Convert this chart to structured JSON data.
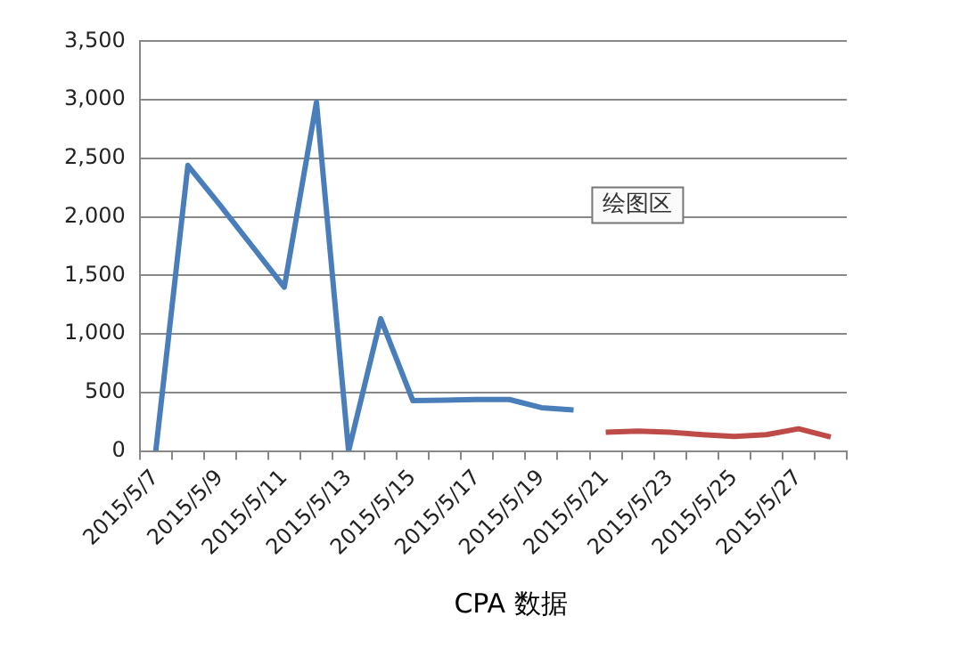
{
  "chart_data": {
    "type": "line",
    "title": "CPA 数据",
    "categories": [
      "2015/5/7",
      null,
      "2015/5/9",
      null,
      "2015/5/11",
      null,
      "2015/5/13",
      null,
      "2015/5/15",
      null,
      "2015/5/17",
      null,
      "2015/5/19",
      null,
      "2015/5/21",
      null,
      "2015/5/23",
      null,
      "2015/5/25",
      null,
      "2015/5/27",
      null
    ],
    "series": [
      {
        "color": "#4a7ebb",
        "values": [
          0,
          2440,
          2100,
          1750,
          1400,
          2980,
          0,
          1130,
          430,
          435,
          440,
          440,
          370,
          350,
          null,
          null,
          null,
          null,
          null,
          null,
          null,
          null
        ]
      },
      {
        "color": "#be4b48",
        "values": [
          null,
          null,
          null,
          null,
          null,
          null,
          null,
          null,
          null,
          null,
          null,
          null,
          null,
          null,
          160,
          170,
          160,
          140,
          125,
          140,
          190,
          120
        ]
      }
    ],
    "ylim": [
      0,
      3500
    ],
    "yticks": [
      {
        "value": 0,
        "label": "0"
      },
      {
        "value": 500,
        "label": "500"
      },
      {
        "value": 1000,
        "label": "1,000"
      },
      {
        "value": 1500,
        "label": "1,500"
      },
      {
        "value": 2000,
        "label": "2,000"
      },
      {
        "value": 2500,
        "label": "2,500"
      },
      {
        "value": 3000,
        "label": "3,000"
      },
      {
        "value": 3500,
        "label": "3,500"
      }
    ],
    "grid": "y",
    "legend": false,
    "marker": "none",
    "line_style": "solid",
    "annotations": [
      "绘图区"
    ]
  }
}
